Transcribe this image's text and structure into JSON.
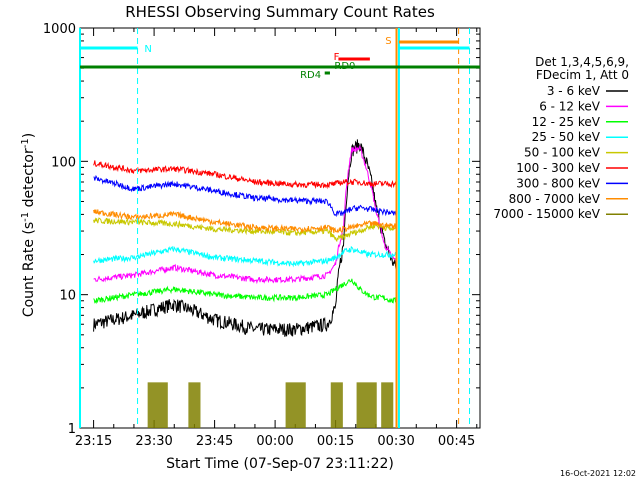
{
  "chart_data": {
    "type": "line",
    "title": "RHESSI Observing Summary Count Rates",
    "xlabel": "Start Time (07-Sep-07 23:11:22)",
    "ylabel_main": "Count Rate (s",
    "ylabel_sup": "-1",
    "ylabel_mid": " detector",
    "ylabel_sup2": "-1",
    "ylabel_end": ")",
    "x_ticks": [
      "23:15",
      "23:30",
      "23:45",
      "00:00",
      "00:15",
      "00:30",
      "00:45"
    ],
    "y_ticks": [
      "1",
      "10",
      "100",
      "1000"
    ],
    "y_scale": "log",
    "ylim": [
      1,
      1000
    ],
    "xlim_minutes": [
      -3.37,
      95.8
    ],
    "date_stamp": "16-Oct-2021 12:02",
    "legend_header": [
      "Det 1,3,4,5,6,9,",
      "FDecim 1, Att 0"
    ],
    "legend_placement": "right",
    "markers": [
      {
        "label": "N",
        "color": "#00ffff"
      },
      {
        "label": "S",
        "color": "#ff8c00"
      },
      {
        "label": "F",
        "color": "#ff0000"
      },
      {
        "label": "RD0",
        "color": "#008000"
      },
      {
        "label": "RD4",
        "color": "#008000"
      }
    ],
    "series": [
      {
        "name": "3 - 6 keV",
        "color": "#000000",
        "x": [
          0,
          10,
          20,
          30,
          40,
          50,
          58,
          60,
          62,
          63,
          64,
          66,
          68,
          70,
          72,
          74,
          75
        ],
        "y": [
          6,
          7,
          8.5,
          6.5,
          5.5,
          5.5,
          6,
          8,
          24,
          68,
          120,
          135,
          90,
          45,
          25,
          18,
          16
        ]
      },
      {
        "name": "6 - 12 keV",
        "color": "#ff00ff",
        "x": [
          0,
          10,
          20,
          30,
          40,
          50,
          58,
          60,
          62,
          63,
          64,
          66,
          68,
          70,
          72,
          74,
          75
        ],
        "y": [
          13,
          14,
          16,
          14,
          13,
          13,
          14,
          17,
          32,
          78,
          122,
          125,
          80,
          42,
          24,
          19,
          18
        ]
      },
      {
        "name": "12 - 25 keV",
        "color": "#00ff00",
        "x": [
          0,
          10,
          20,
          30,
          40,
          50,
          58,
          60,
          62,
          64,
          66,
          68,
          70,
          72,
          74,
          75
        ],
        "y": [
          9,
          10,
          11,
          10,
          9.5,
          9.5,
          10,
          11,
          12,
          13,
          11,
          10,
          9.5,
          9.5,
          9,
          9
        ]
      },
      {
        "name": "25 - 50 keV",
        "color": "#00ffff",
        "x": [
          0,
          10,
          20,
          30,
          40,
          50,
          58,
          60,
          62,
          64,
          66,
          68,
          70,
          72,
          74,
          75
        ],
        "y": [
          18,
          19,
          22,
          19,
          18,
          17,
          18,
          19,
          21,
          22,
          21,
          20,
          20,
          20,
          20,
          20
        ]
      },
      {
        "name": "50 - 100 keV",
        "color": "#c8c800",
        "x": [
          0,
          10,
          20,
          30,
          40,
          50,
          58,
          60,
          62,
          64,
          66,
          68,
          70,
          72,
          74,
          75
        ],
        "y": [
          36,
          35,
          34,
          31,
          30,
          29,
          30,
          26,
          27,
          29,
          30,
          32,
          33,
          32,
          31,
          31
        ]
      },
      {
        "name": "100 - 300 keV",
        "color": "#ff0000",
        "x": [
          0,
          10,
          20,
          30,
          40,
          50,
          58,
          59,
          60,
          62,
          64,
          66,
          68,
          70,
          72,
          74,
          75
        ],
        "y": [
          97,
          85,
          88,
          80,
          70,
          67,
          67,
          67,
          68,
          70,
          70,
          70,
          68,
          68,
          68,
          68,
          68
        ]
      },
      {
        "name": "300 - 800 keV",
        "color": "#0000ff",
        "x": [
          0,
          10,
          20,
          30,
          40,
          50,
          58,
          60,
          62,
          64,
          66,
          68,
          70,
          72,
          74,
          75
        ],
        "y": [
          75,
          62,
          68,
          60,
          53,
          51,
          50,
          40,
          41,
          44,
          45,
          44,
          43,
          42,
          41,
          40
        ]
      },
      {
        "name": "800 - 7000 keV",
        "color": "#ff8c00",
        "x": [
          0,
          10,
          20,
          30,
          40,
          50,
          58,
          60,
          62,
          64,
          66,
          68,
          70,
          72,
          74,
          75
        ],
        "y": [
          42,
          38,
          40,
          35,
          32,
          31,
          32,
          30,
          31,
          32,
          33,
          34,
          34,
          33,
          33,
          33
        ]
      },
      {
        "name": "7000 - 15000 keV",
        "color": "#808000",
        "x": [
          13.4,
          23.5,
          47.6,
          58.8,
          65.2,
          71.3
        ],
        "y": [
          2.2,
          2.2,
          2.2,
          2.2,
          2.2,
          2.2
        ]
      }
    ]
  }
}
